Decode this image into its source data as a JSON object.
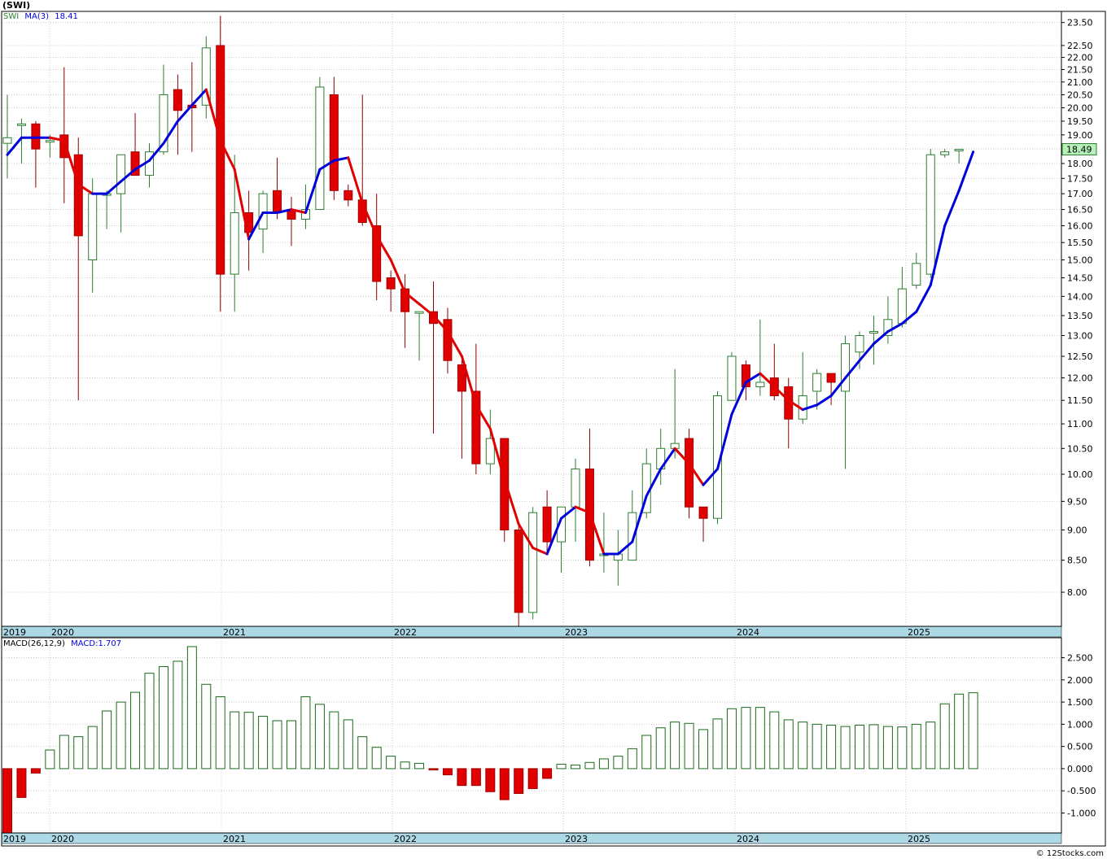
{
  "title": "(SWI)",
  "copyright": "© 12Stocks.com",
  "price_panel": {
    "legend": {
      "symbol": "SWI",
      "ma_label": "MA(3)",
      "ma_value": "18.41"
    },
    "last_price_label": "18.49"
  },
  "macd_panel": {
    "legend": {
      "label": "MACD(26,12,9)",
      "value_label": "MACD:1.707"
    }
  },
  "colors": {
    "up_candle": "#2e7d32",
    "down_candle": "#e00000",
    "ma_up": "#0000dd",
    "ma_down": "#e00000",
    "grid": "#cccccc",
    "axis_band": "#add8e6",
    "macd_up": "#1a6a1a",
    "macd_down": "#e00000",
    "last_price_bg": "#b7f0b7"
  },
  "chart_data": [
    {
      "type": "candlestick",
      "timeframe": "monthly",
      "x_labels": [
        "2019",
        "2020",
        "2021",
        "2022",
        "2023",
        "2024",
        "2025"
      ],
      "y_ticks": [
        "8.00",
        "8.50",
        "9.00",
        "9.50",
        "10.00",
        "10.50",
        "11.00",
        "11.50",
        "12.00",
        "12.50",
        "13.00",
        "13.50",
        "14.00",
        "14.50",
        "15.00",
        "15.50",
        "16.00",
        "16.50",
        "17.00",
        "17.50",
        "18.00",
        "18.50",
        "19.00",
        "19.50",
        "20.00",
        "20.50",
        "21.00",
        "21.50",
        "22.00",
        "22.50",
        "23.50"
      ],
      "ylim": [
        7.5,
        24.0
      ],
      "scale": "log",
      "grid": true,
      "candles": [
        {
          "open": 18.7,
          "high": 20.5,
          "low": 17.5,
          "close": 18.9
        },
        {
          "open": 19.4,
          "high": 19.6,
          "low": 18.0,
          "close": 19.4
        },
        {
          "open": 19.4,
          "high": 19.5,
          "low": 17.2,
          "close": 18.5
        },
        {
          "open": 18.8,
          "high": 19.0,
          "low": 18.2,
          "close": 18.8
        },
        {
          "open": 19.0,
          "high": 21.6,
          "low": 16.7,
          "close": 18.2
        },
        {
          "open": 18.3,
          "high": 18.9,
          "low": 11.5,
          "close": 15.7
        },
        {
          "open": 15.0,
          "high": 17.5,
          "low": 14.1,
          "close": 17.0
        },
        {
          "open": 17.0,
          "high": 17.1,
          "low": 15.9,
          "close": 17.0
        },
        {
          "open": 17.0,
          "high": 18.3,
          "low": 15.8,
          "close": 18.3
        },
        {
          "open": 18.4,
          "high": 19.8,
          "low": 17.6,
          "close": 17.6
        },
        {
          "open": 17.6,
          "high": 18.7,
          "low": 17.2,
          "close": 18.4
        },
        {
          "open": 18.4,
          "high": 21.7,
          "low": 18.3,
          "close": 20.5
        },
        {
          "open": 20.7,
          "high": 21.3,
          "low": 18.3,
          "close": 19.9
        },
        {
          "open": 20.1,
          "high": 21.8,
          "low": 18.4,
          "close": 20.0
        },
        {
          "open": 20.1,
          "high": 22.9,
          "low": 19.6,
          "close": 22.4
        },
        {
          "open": 22.5,
          "high": 23.8,
          "low": 13.6,
          "close": 14.6
        },
        {
          "open": 14.6,
          "high": 18.3,
          "low": 13.6,
          "close": 16.4
        },
        {
          "open": 16.4,
          "high": 17.1,
          "low": 14.7,
          "close": 15.8
        },
        {
          "open": 15.9,
          "high": 17.1,
          "low": 15.2,
          "close": 17.0
        },
        {
          "open": 17.1,
          "high": 18.2,
          "low": 16.2,
          "close": 16.4
        },
        {
          "open": 16.5,
          "high": 16.9,
          "low": 15.4,
          "close": 16.2
        },
        {
          "open": 16.2,
          "high": 17.3,
          "low": 15.9,
          "close": 16.5
        },
        {
          "open": 16.5,
          "high": 21.2,
          "low": 16.5,
          "close": 20.8
        },
        {
          "open": 20.5,
          "high": 21.2,
          "low": 16.8,
          "close": 17.1
        },
        {
          "open": 17.1,
          "high": 17.3,
          "low": 16.6,
          "close": 16.8
        },
        {
          "open": 16.8,
          "high": 20.5,
          "low": 16.0,
          "close": 16.1
        },
        {
          "open": 16.0,
          "high": 17.0,
          "low": 13.9,
          "close": 14.4
        },
        {
          "open": 14.5,
          "high": 14.7,
          "low": 13.6,
          "close": 14.2
        },
        {
          "open": 14.2,
          "high": 14.6,
          "low": 12.7,
          "close": 13.6
        },
        {
          "open": 13.6,
          "high": 13.6,
          "low": 12.4,
          "close": 13.6
        },
        {
          "open": 13.6,
          "high": 14.4,
          "low": 10.8,
          "close": 13.3
        },
        {
          "open": 13.4,
          "high": 13.7,
          "low": 12.1,
          "close": 12.4
        },
        {
          "open": 12.3,
          "high": 12.4,
          "low": 10.3,
          "close": 11.7
        },
        {
          "open": 11.7,
          "high": 12.8,
          "low": 10.0,
          "close": 10.2
        },
        {
          "open": 10.2,
          "high": 11.3,
          "low": 10.0,
          "close": 10.7
        },
        {
          "open": 10.7,
          "high": 10.7,
          "low": 8.8,
          "close": 9.0
        },
        {
          "open": 9.0,
          "high": 9.1,
          "low": 7.5,
          "close": 7.7
        },
        {
          "open": 7.7,
          "high": 9.4,
          "low": 7.6,
          "close": 9.3
        },
        {
          "open": 9.4,
          "high": 9.7,
          "low": 8.6,
          "close": 8.8
        },
        {
          "open": 8.8,
          "high": 9.4,
          "low": 8.3,
          "close": 9.4
        },
        {
          "open": 9.4,
          "high": 10.3,
          "low": 8.8,
          "close": 10.1
        },
        {
          "open": 10.1,
          "high": 10.9,
          "low": 8.4,
          "close": 8.5
        },
        {
          "open": 8.6,
          "high": 9.3,
          "low": 8.3,
          "close": 8.6
        },
        {
          "open": 8.5,
          "high": 9.0,
          "low": 8.1,
          "close": 8.6
        },
        {
          "open": 8.5,
          "high": 9.7,
          "low": 8.5,
          "close": 9.3
        },
        {
          "open": 9.3,
          "high": 10.5,
          "low": 9.2,
          "close": 10.2
        },
        {
          "open": 10.1,
          "high": 10.9,
          "low": 9.8,
          "close": 10.5
        },
        {
          "open": 10.5,
          "high": 12.2,
          "low": 10.3,
          "close": 10.6
        },
        {
          "open": 10.7,
          "high": 10.9,
          "low": 9.2,
          "close": 9.4
        },
        {
          "open": 9.4,
          "high": 9.4,
          "low": 8.8,
          "close": 9.2
        },
        {
          "open": 9.2,
          "high": 11.7,
          "low": 9.1,
          "close": 11.6
        },
        {
          "open": 11.5,
          "high": 12.6,
          "low": 11.5,
          "close": 12.5
        },
        {
          "open": 12.3,
          "high": 12.4,
          "low": 11.5,
          "close": 11.8
        },
        {
          "open": 11.8,
          "high": 13.4,
          "low": 11.6,
          "close": 11.9
        },
        {
          "open": 12.0,
          "high": 12.8,
          "low": 11.5,
          "close": 11.6
        },
        {
          "open": 11.8,
          "high": 12.0,
          "low": 10.5,
          "close": 11.1
        },
        {
          "open": 11.1,
          "high": 12.6,
          "low": 11.0,
          "close": 11.6
        },
        {
          "open": 11.7,
          "high": 12.2,
          "low": 11.3,
          "close": 12.1
        },
        {
          "open": 12.1,
          "high": 12.1,
          "low": 11.4,
          "close": 11.9
        },
        {
          "open": 11.7,
          "high": 13.0,
          "low": 10.1,
          "close": 12.8
        },
        {
          "open": 12.6,
          "high": 13.1,
          "low": 12.2,
          "close": 13.0
        },
        {
          "open": 13.1,
          "high": 13.5,
          "low": 12.3,
          "close": 13.1
        },
        {
          "open": 13.0,
          "high": 14.0,
          "low": 12.8,
          "close": 13.4
        },
        {
          "open": 13.3,
          "high": 14.8,
          "low": 13.2,
          "close": 14.2
        },
        {
          "open": 14.3,
          "high": 15.2,
          "low": 14.2,
          "close": 14.9
        },
        {
          "open": 14.6,
          "high": 18.5,
          "low": 14.5,
          "close": 18.3
        },
        {
          "open": 18.3,
          "high": 18.5,
          "low": 18.2,
          "close": 18.4
        },
        {
          "open": 18.45,
          "high": 18.5,
          "low": 18.0,
          "close": 18.49
        }
      ],
      "ma3": [
        18.3,
        18.9,
        18.9,
        18.9,
        18.8,
        17.3,
        17.0,
        17.0,
        17.4,
        17.8,
        18.1,
        18.7,
        19.5,
        20.1,
        20.7,
        18.8,
        17.8,
        15.6,
        16.4,
        16.4,
        16.5,
        16.4,
        17.8,
        18.1,
        18.2,
        16.7,
        15.7,
        15.0,
        14.1,
        13.8,
        13.5,
        13.1,
        12.5,
        11.4,
        10.9,
        9.9,
        9.1,
        8.7,
        8.6,
        9.2,
        9.4,
        9.3,
        8.6,
        8.6,
        8.8,
        9.6,
        10.1,
        10.5,
        10.2,
        9.8,
        10.1,
        11.2,
        11.9,
        12.1,
        11.8,
        11.5,
        11.3,
        11.4,
        11.6,
        12.0,
        12.4,
        12.8,
        13.1,
        13.3,
        13.6,
        14.3,
        16.0,
        17.1,
        18.4
      ]
    },
    {
      "type": "bar",
      "title": "MACD(26,12,9)",
      "y_ticks": [
        "-1.000",
        "-0.500",
        "0.000",
        "0.500",
        "1.000",
        "1.500",
        "2.000",
        "2.500"
      ],
      "ylim": [
        -1.45,
        2.95
      ],
      "values": [
        -1.5,
        -0.65,
        -0.1,
        0.42,
        0.75,
        0.72,
        0.95,
        1.3,
        1.5,
        1.72,
        2.15,
        2.3,
        2.42,
        2.75,
        1.9,
        1.62,
        1.28,
        1.27,
        1.18,
        1.08,
        1.08,
        1.62,
        1.45,
        1.28,
        1.1,
        0.72,
        0.48,
        0.28,
        0.15,
        0.12,
        -0.03,
        -0.14,
        -0.38,
        -0.38,
        -0.52,
        -0.7,
        -0.56,
        -0.45,
        -0.22,
        0.1,
        0.08,
        0.14,
        0.22,
        0.28,
        0.45,
        0.75,
        0.92,
        1.05,
        1.02,
        0.88,
        1.12,
        1.35,
        1.38,
        1.38,
        1.28,
        1.1,
        1.05,
        1.0,
        0.98,
        0.95,
        0.98,
        0.99,
        0.95,
        0.94,
        1.0,
        1.05,
        1.46,
        1.68,
        1.71
      ]
    }
  ]
}
